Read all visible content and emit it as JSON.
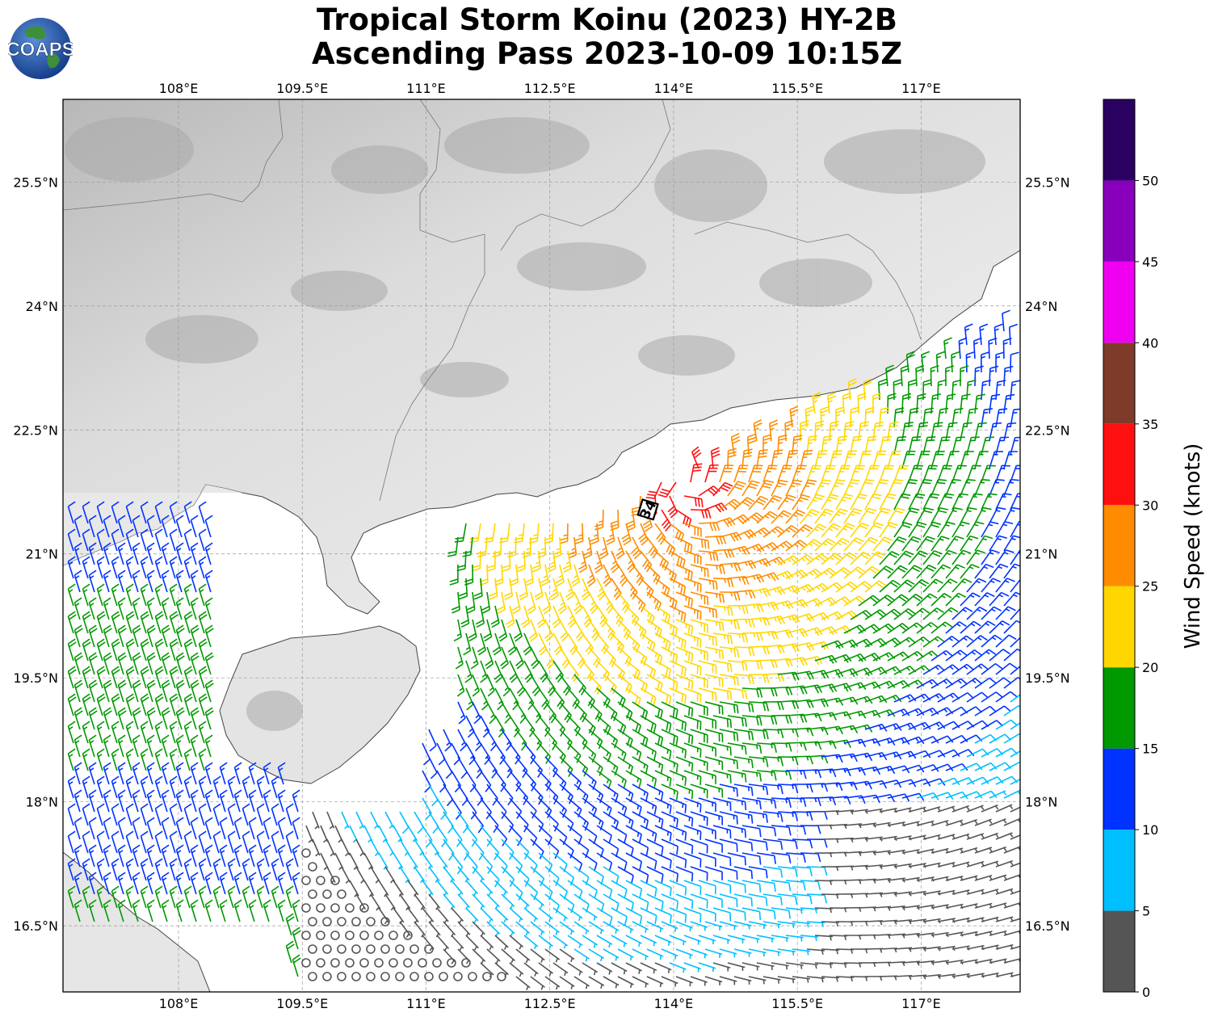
{
  "header": {
    "title_line1": "Tropical Storm Koinu (2023) HY-2B",
    "title_line2": "Ascending Pass 2023-10-09 10:15Z",
    "logo_text": "COAPS"
  },
  "map": {
    "lon_range": [
      106.6,
      118.2
    ],
    "lat_range": [
      15.7,
      26.5
    ],
    "lon_ticks": [
      {
        "value": 108.0,
        "label": "108°E"
      },
      {
        "value": 109.5,
        "label": "109.5°E"
      },
      {
        "value": 111.0,
        "label": "111°E"
      },
      {
        "value": 112.5,
        "label": "112.5°E"
      },
      {
        "value": 114.0,
        "label": "114°E"
      },
      {
        "value": 115.5,
        "label": "115.5°E"
      },
      {
        "value": 117.0,
        "label": "117°E"
      }
    ],
    "lat_ticks": [
      {
        "value": 16.5,
        "label": "16.5°N"
      },
      {
        "value": 18.0,
        "label": "18°N"
      },
      {
        "value": 19.5,
        "label": "19.5°N"
      },
      {
        "value": 21.0,
        "label": "21°N"
      },
      {
        "value": 22.5,
        "label": "22.5°N"
      },
      {
        "value": 24.0,
        "label": "24°N"
      },
      {
        "value": 25.5,
        "label": "25.5°N"
      }
    ],
    "grid": true,
    "storm_marker": {
      "label": "34",
      "lon": 114.1,
      "lat": 21.85
    }
  },
  "colorbar": {
    "title": "Wind Speed (knots)",
    "tick_labels": [
      "0",
      "5",
      "10",
      "15",
      "20",
      "25",
      "30",
      "35",
      "40",
      "45",
      "50"
    ],
    "bins": [
      {
        "min": 0,
        "max": 5,
        "color": "#555555"
      },
      {
        "min": 5,
        "max": 10,
        "color": "#00bfff"
      },
      {
        "min": 10,
        "max": 15,
        "color": "#0033ff"
      },
      {
        "min": 15,
        "max": 20,
        "color": "#009900"
      },
      {
        "min": 20,
        "max": 25,
        "color": "#ffd700"
      },
      {
        "min": 25,
        "max": 30,
        "color": "#ff8c00"
      },
      {
        "min": 30,
        "max": 35,
        "color": "#ff1010"
      },
      {
        "min": 35,
        "max": 40,
        "color": "#7f3b2a"
      },
      {
        "min": 40,
        "max": 45,
        "color": "#f000f0"
      },
      {
        "min": 45,
        "max": 50,
        "color": "#8800bb"
      },
      {
        "min": 50,
        "max": 55,
        "color": "#2a0060"
      }
    ]
  }
}
